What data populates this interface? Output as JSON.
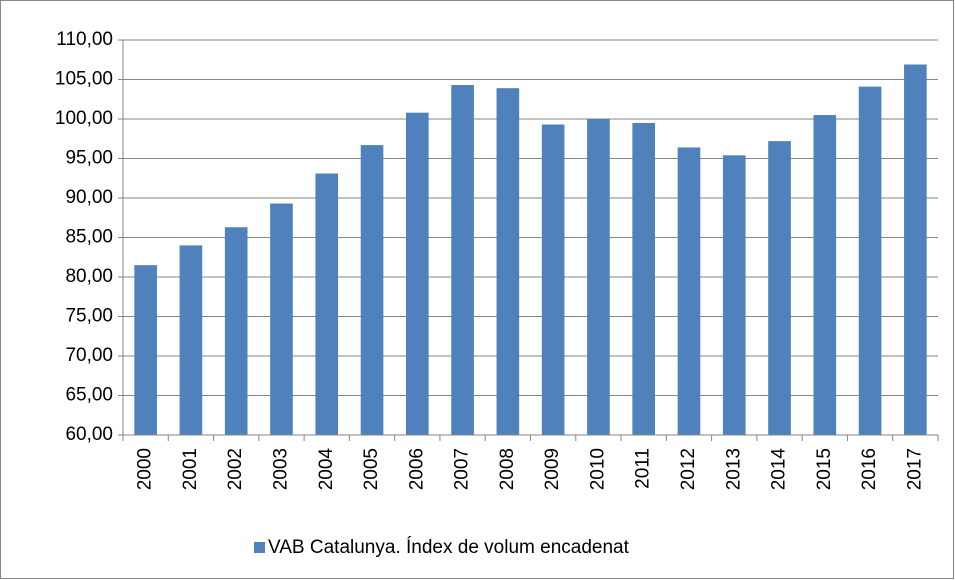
{
  "chart_data": {
    "type": "bar",
    "categories": [
      "2000",
      "2001",
      "2002",
      "2003",
      "2004",
      "2005",
      "2006",
      "2007",
      "2008",
      "2009",
      "2010",
      "2011",
      "2012",
      "2013",
      "2014",
      "2015",
      "2016",
      "2017"
    ],
    "series": [
      {
        "name": "VAB Catalunya. Índex de volum encadenat",
        "color": "#4f81bd",
        "values": [
          81.5,
          84.0,
          86.3,
          89.3,
          93.1,
          96.7,
          100.8,
          104.3,
          103.9,
          99.3,
          100.0,
          99.5,
          96.4,
          95.4,
          97.2,
          100.5,
          104.1,
          106.9
        ]
      }
    ],
    "ylim": [
      60,
      110
    ],
    "yticks": [
      {
        "value": 60,
        "label": "60,00"
      },
      {
        "value": 65,
        "label": "65,00"
      },
      {
        "value": 70,
        "label": "70,00"
      },
      {
        "value": 75,
        "label": "75,00"
      },
      {
        "value": 80,
        "label": "80,00"
      },
      {
        "value": 85,
        "label": "85,00"
      },
      {
        "value": 90,
        "label": "90,00"
      },
      {
        "value": 95,
        "label": "95,00"
      },
      {
        "value": 100,
        "label": "100,00"
      },
      {
        "value": 105,
        "label": "105,00"
      },
      {
        "value": 110,
        "label": "110,00"
      }
    ],
    "grid": true,
    "legend": "bottom"
  }
}
